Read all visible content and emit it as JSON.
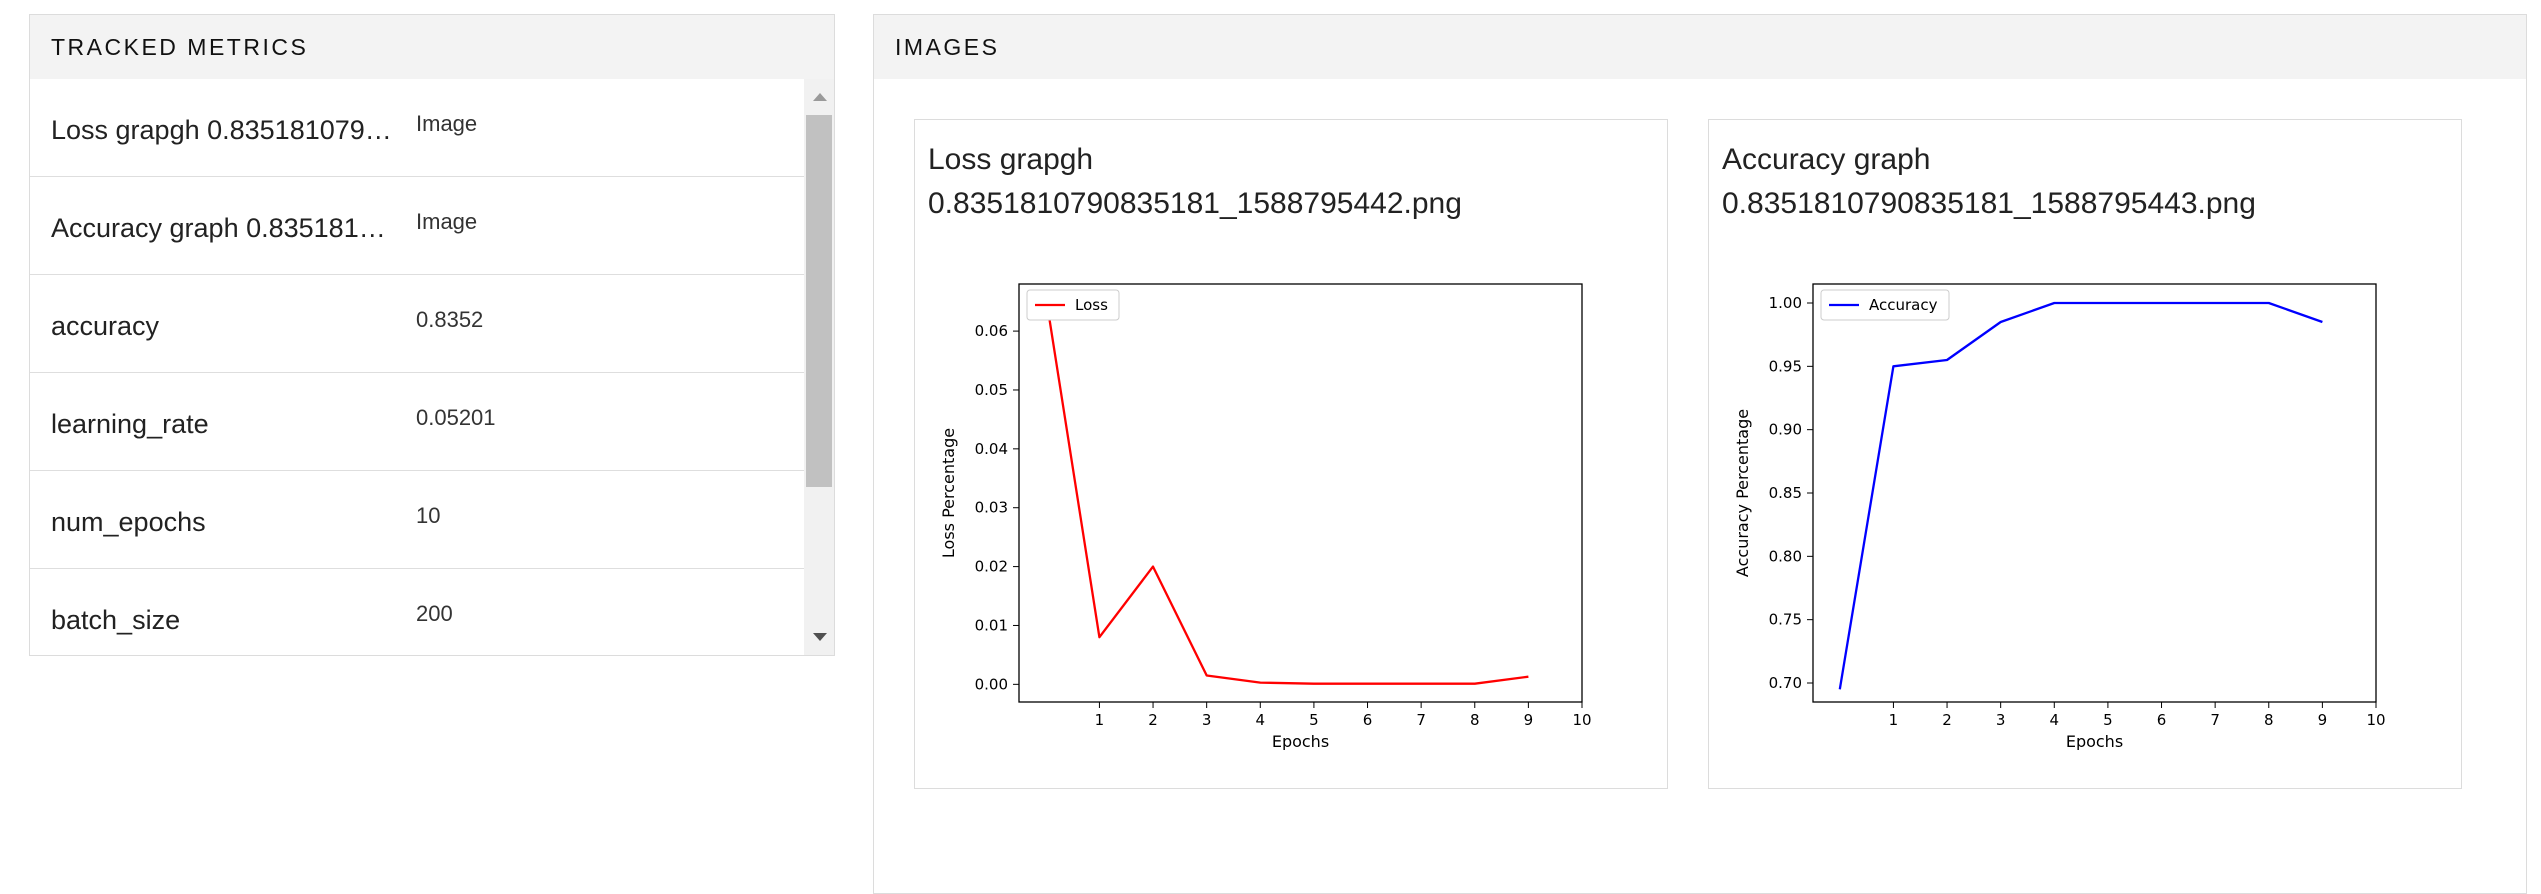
{
  "metrics_panel": {
    "title": "TRACKED METRICS",
    "rows": [
      {
        "name": "Loss grapgh 0.8351810790835181_1588795442.png",
        "value": "Image"
      },
      {
        "name": "Accuracy graph 0.8351810790835181_1588795443.png",
        "value": "Image"
      },
      {
        "name": "accuracy",
        "value": "0.8352"
      },
      {
        "name": "learning_rate",
        "value": "0.05201"
      },
      {
        "name": "num_epochs",
        "value": "10"
      },
      {
        "name": "batch_size",
        "value": "200"
      }
    ]
  },
  "images_panel": {
    "title": "IMAGES",
    "cards": [
      {
        "title_line1": "Loss grapgh",
        "title_line2": "0.8351810790835181_1588795442.png"
      },
      {
        "title_line1": "Accuracy graph",
        "title_line2": "0.8351810790835181_1588795443.png"
      }
    ]
  },
  "chart_data": [
    {
      "type": "line",
      "xlabel": "Epochs",
      "ylabel": "Loss Percentage",
      "x": [
        0,
        1,
        2,
        3,
        4,
        5,
        6,
        7,
        8,
        9
      ],
      "xticks": [
        1,
        2,
        3,
        4,
        5,
        6,
        7,
        8,
        9,
        10
      ],
      "xlim": [
        -0.5,
        10
      ],
      "yticks": [
        0.0,
        0.01,
        0.02,
        0.03,
        0.04,
        0.05,
        0.06
      ],
      "ytick_labels": [
        "0.00",
        "0.01",
        "0.02",
        "0.03",
        "0.04",
        "0.05",
        "0.06"
      ],
      "ylim": [
        -0.003,
        0.068
      ],
      "series": [
        {
          "name": "Loss",
          "color": "#ff0000",
          "values": [
            0.066,
            0.008,
            0.02,
            0.0015,
            0.0003,
            0.0001,
            0.0001,
            0.0001,
            0.0001,
            0.0013
          ]
        }
      ],
      "legend": "upper-left",
      "grid": false
    },
    {
      "type": "line",
      "xlabel": "Epochs",
      "ylabel": "Accuracy Percentage",
      "x": [
        0,
        1,
        2,
        3,
        4,
        5,
        6,
        7,
        8,
        9
      ],
      "xticks": [
        1,
        2,
        3,
        4,
        5,
        6,
        7,
        8,
        9,
        10
      ],
      "xlim": [
        -0.5,
        10
      ],
      "yticks": [
        0.7,
        0.75,
        0.8,
        0.85,
        0.9,
        0.95,
        1.0
      ],
      "ytick_labels": [
        "0.70",
        "0.75",
        "0.80",
        "0.85",
        "0.90",
        "0.95",
        "1.00"
      ],
      "ylim": [
        0.685,
        1.015
      ],
      "series": [
        {
          "name": "Accuracy",
          "color": "#0000ff",
          "values": [
            0.695,
            0.95,
            0.955,
            0.985,
            1.0,
            1.0,
            1.0,
            1.0,
            1.0,
            0.985
          ]
        }
      ],
      "legend": "upper-left",
      "grid": false
    }
  ]
}
